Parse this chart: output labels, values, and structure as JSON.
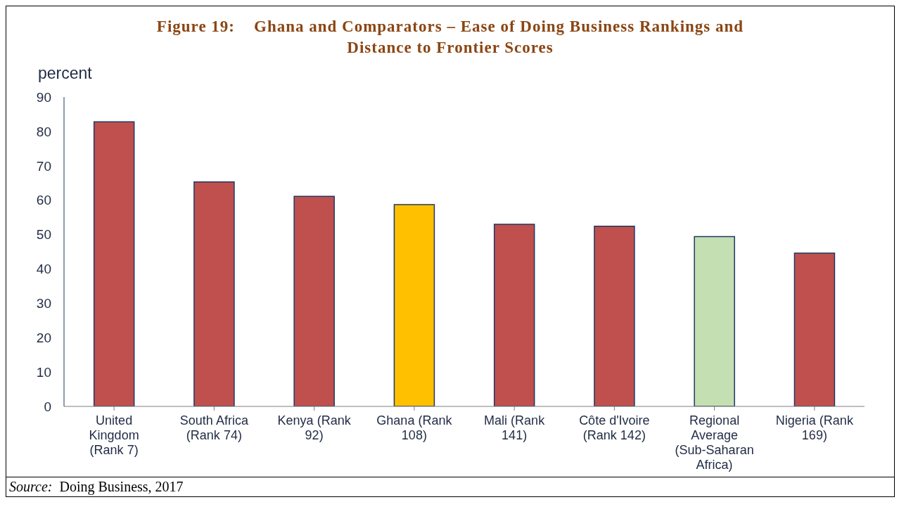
{
  "chart_data": {
    "type": "bar",
    "title": "Figure 19:    Ghana and Comparators – Ease of Doing Business Rankings and Distance to Frontier Scores",
    "ylabel": "percent",
    "categories": [
      "United Kingdom (Rank 7)",
      "South Africa (Rank 74)",
      "Kenya (Rank 92)",
      "Ghana (Rank 108)",
      "Mali (Rank 141)",
      "Côte d'Ivoire (Rank 142)",
      "Regional Average (Sub-Saharan Africa)",
      "Nigeria (Rank 169)"
    ],
    "values": [
      82.8,
      65.3,
      61.1,
      58.7,
      53.0,
      52.4,
      49.4,
      44.6
    ],
    "colors": [
      "#c0504d",
      "#c0504d",
      "#c0504d",
      "#ffc000",
      "#c0504d",
      "#c0504d",
      "#c4e0b2",
      "#c0504d"
    ],
    "ylim": [
      0,
      90
    ],
    "yticks": [
      0,
      10,
      20,
      30,
      40,
      50,
      60,
      70,
      80,
      90
    ],
    "grid": false,
    "legend": false,
    "annotations": [
      "Source:  Doing Business, 2017"
    ]
  }
}
